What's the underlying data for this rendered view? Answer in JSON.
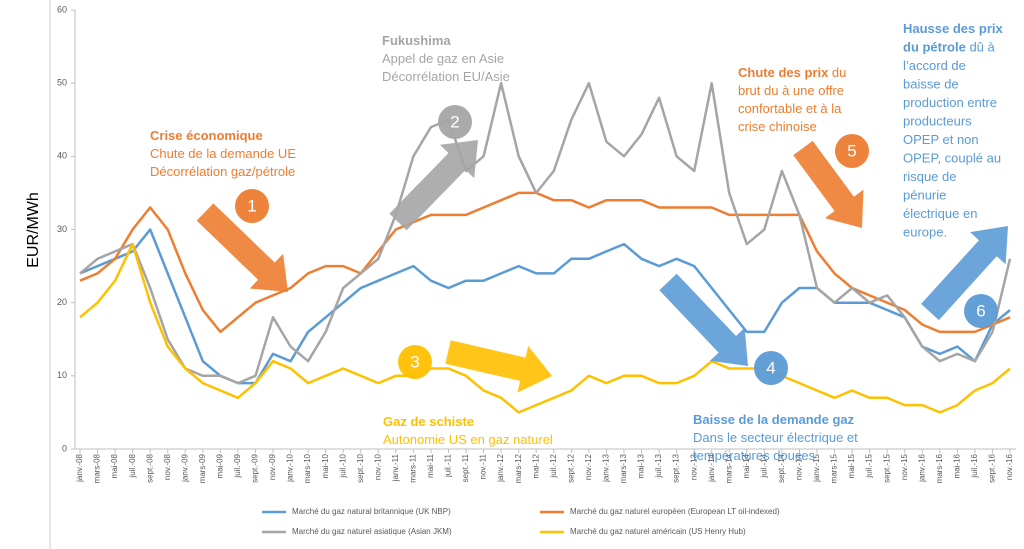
{
  "chart_data": {
    "type": "line",
    "y_label": "EUR/MWh",
    "ylim": [
      0,
      60
    ],
    "yticks": [
      0,
      10,
      20,
      30,
      40,
      50,
      60
    ],
    "categories": [
      "janv.-08",
      "mars-08",
      "mai-08",
      "juil.-08",
      "sept.-08",
      "nov.-08",
      "janv.-09",
      "mars-09",
      "mai-09",
      "juil.-09",
      "sept.-09",
      "nov.-09",
      "janv.-10",
      "mars-10",
      "mai-10",
      "juil.-10",
      "sept.-10",
      "nov.-10",
      "janv.-11",
      "mars-11",
      "mai-11",
      "juil.-11",
      "sept.-11",
      "nov.-11",
      "janv.-12",
      "mars-12",
      "mai-12",
      "juil.-12",
      "sept.-12",
      "nov.-12",
      "janv.-13",
      "mars-13",
      "mai-13",
      "juil.-13",
      "sept.-13",
      "nov.-13",
      "janv.-14",
      "mars-14",
      "mai-14",
      "juil.-14",
      "sept.-14",
      "nov.-14",
      "janv.-15",
      "mars-15",
      "mai-15",
      "juil.-15",
      "sept.-15",
      "nov.-15",
      "janv.-16",
      "mars-16",
      "mai-16",
      "juil.-16",
      "sept.-16",
      "nov.-16"
    ],
    "series": [
      {
        "name": "Marché du gaz natural britannique (UK NBP)",
        "color": "#5b9bd5",
        "values": [
          24,
          25,
          26,
          27,
          30,
          24,
          18,
          12,
          10,
          9,
          9,
          13,
          12,
          16,
          18,
          20,
          22,
          23,
          24,
          25,
          23,
          22,
          23,
          23,
          24,
          25,
          24,
          24,
          26,
          26,
          27,
          28,
          26,
          25,
          26,
          25,
          22,
          19,
          16,
          16,
          20,
          22,
          22,
          20,
          20,
          20,
          19,
          18,
          14,
          13,
          14,
          12,
          17,
          19
        ]
      },
      {
        "name": "Marché du gaz naturel européen (European LT oil-indexed)",
        "color": "#ed7d31",
        "values": [
          23,
          24,
          26,
          30,
          33,
          30,
          24,
          19,
          16,
          18,
          20,
          21,
          22,
          24,
          25,
          25,
          24,
          27,
          30,
          31,
          32,
          32,
          32,
          33,
          34,
          35,
          35,
          34,
          34,
          33,
          34,
          34,
          34,
          33,
          33,
          33,
          33,
          32,
          32,
          32,
          32,
          32,
          27,
          24,
          22,
          21,
          20,
          19,
          17,
          16,
          16,
          16,
          17,
          18
        ]
      },
      {
        "name": "Marché du gaz naturel asiatique (Asian JKM)",
        "color": "#a5a5a5",
        "values": [
          24,
          26,
          27,
          28,
          22,
          15,
          11,
          10,
          10,
          9,
          10,
          18,
          14,
          12,
          16,
          22,
          24,
          26,
          32,
          40,
          44,
          45,
          38,
          40,
          50,
          40,
          35,
          38,
          45,
          50,
          42,
          40,
          43,
          48,
          40,
          38,
          50,
          35,
          28,
          30,
          38,
          32,
          22,
          20,
          22,
          20,
          21,
          18,
          14,
          12,
          13,
          12,
          16,
          26
        ]
      },
      {
        "name": "Marché du gaz naturel américain (US Henry Hub)",
        "color": "#ffc000",
        "values": [
          18,
          20,
          23,
          28,
          20,
          14,
          11,
          9,
          8,
          7,
          9,
          12,
          11,
          9,
          10,
          11,
          10,
          9,
          10,
          10,
          11,
          11,
          10,
          8,
          7,
          5,
          6,
          7,
          8,
          10,
          9,
          10,
          10,
          9,
          9,
          10,
          12,
          11,
          11,
          11,
          10,
          9,
          8,
          7,
          8,
          7,
          7,
          6,
          6,
          5,
          6,
          8,
          9,
          11
        ]
      }
    ],
    "markers": [
      {
        "label": "1",
        "color": "#ed7d31"
      },
      {
        "label": "2",
        "color": "#a5a5a5"
      },
      {
        "label": "3",
        "color": "#ffc000"
      },
      {
        "label": "4",
        "color": "#5b9bd5"
      },
      {
        "label": "5",
        "color": "#ed7d31"
      },
      {
        "label": "6",
        "color": "#5b9bd5"
      }
    ],
    "annotations": [
      {
        "color": "#ed7d31",
        "lines": [
          [
            {
              "text": "Crise économique",
              "bold": true
            }
          ],
          [
            {
              "text": "Chute de la demande UE"
            }
          ],
          [
            {
              "text": "Décorrélation gaz/pétrole"
            }
          ]
        ]
      },
      {
        "color": "#a5a5a5",
        "lines": [
          [
            {
              "text": "Fukushima",
              "bold": true
            }
          ],
          [
            {
              "text": "Appel de gaz en Asie"
            }
          ],
          [
            {
              "text": "Décorrélation EU/Asie"
            }
          ]
        ]
      },
      {
        "color": "#ed7d31",
        "lines": [
          [
            {
              "text": "Chute des prix",
              "bold": true
            },
            {
              "text": " du"
            }
          ],
          [
            {
              "text": "brut du à une offre"
            }
          ],
          [
            {
              "text": "confortable et à la"
            }
          ],
          [
            {
              "text": "crise chinoise"
            }
          ]
        ]
      },
      {
        "color": "#5b9bd5",
        "lines": [
          [
            {
              "text": "Hausse des prix",
              "bold": true
            }
          ],
          [
            {
              "text": "du pétrole",
              "bold": true
            },
            {
              "text": " dû à"
            }
          ],
          [
            {
              "text": "l’accord de"
            }
          ],
          [
            {
              "text": "baisse de"
            }
          ],
          [
            {
              "text": "production entre"
            }
          ],
          [
            {
              "text": "producteurs"
            }
          ],
          [
            {
              "text": "OPEP et non"
            }
          ],
          [
            {
              "text": "OPEP, couplé au"
            }
          ],
          [
            {
              "text": "risque de"
            }
          ],
          [
            {
              "text": "pénurie"
            }
          ],
          [
            {
              "text": "électrique en"
            }
          ],
          [
            {
              "text": "europe."
            }
          ]
        ]
      },
      {
        "color": "#ffc000",
        "lines": [
          [
            {
              "text": "Gaz de schiste",
              "bold": true
            }
          ],
          [
            {
              "text": "Autonomie US en gaz naturel"
            }
          ]
        ]
      },
      {
        "color": "#5b9bd5",
        "lines": [
          [
            {
              "text": "Baisse de la demande gaz",
              "bold": true
            }
          ],
          [
            {
              "text": "Dans le secteur électrique et"
            }
          ],
          [
            {
              "text": "températures douces"
            }
          ]
        ]
      }
    ]
  }
}
